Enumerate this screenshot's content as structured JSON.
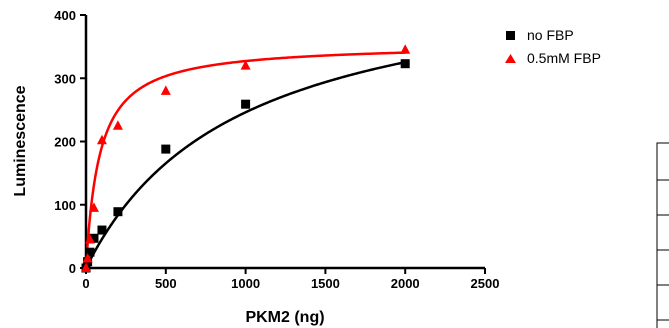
{
  "chart_data": {
    "type": "scatter",
    "xlabel": "PKM2 (ng)",
    "ylabel": "Luminescence",
    "xlim": [
      0,
      2500
    ],
    "ylim": [
      0,
      400
    ],
    "x_ticks": [
      "0",
      "500",
      "1000",
      "1500",
      "2000",
      "2500"
    ],
    "y_ticks": [
      "0",
      "100",
      "200",
      "300",
      "400"
    ],
    "x_tick_values": [
      0,
      500,
      1000,
      1500,
      2000,
      2500
    ],
    "y_tick_values": [
      0,
      100,
      200,
      300,
      400
    ],
    "grid": false,
    "legend_position": "top-right",
    "series": [
      {
        "name": "no FBP",
        "marker": "square",
        "color": "#000000",
        "x": [
          0,
          10,
          25,
          50,
          100,
          200,
          500,
          1000,
          2000
        ],
        "y": [
          0,
          10,
          25,
          47,
          60,
          89,
          188,
          259,
          323
        ],
        "fit_curve": "hyperbolic",
        "fit_params": {
          "Bmax": 480,
          "Kd": 950
        }
      },
      {
        "name": "0.5mM FBP",
        "marker": "triangle",
        "color": "#ff0000",
        "x": [
          0,
          10,
          25,
          50,
          100,
          200,
          500,
          1000,
          2000
        ],
        "y": [
          0,
          15,
          45,
          95,
          202,
          225,
          280,
          320,
          345
        ],
        "fit_curve": "hyperbolic",
        "fit_params": {
          "Bmax": 355,
          "Kd": 85
        }
      }
    ]
  }
}
